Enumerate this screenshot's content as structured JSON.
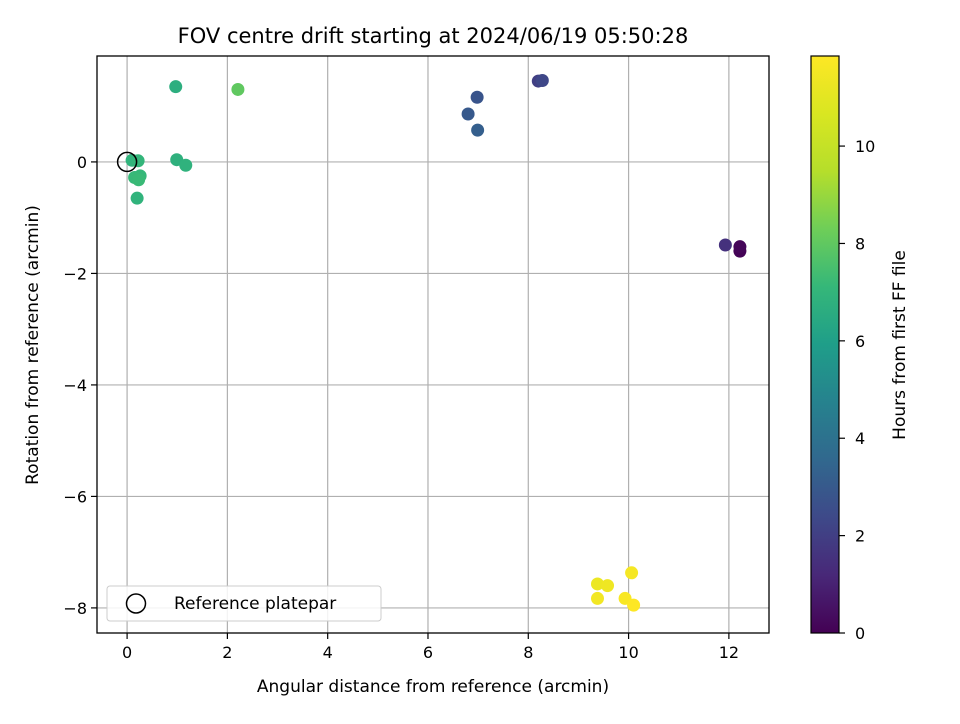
{
  "chart_data": {
    "type": "scatter",
    "title": "FOV centre drift starting at 2024/06/19 05:50:28",
    "xlabel": "Angular distance from reference (arcmin)",
    "ylabel": "Rotation from reference (arcmin)",
    "xlim": [
      -0.6,
      12.8
    ],
    "ylim": [
      -8.45,
      1.9
    ],
    "xticks": [
      0,
      2,
      4,
      6,
      8,
      10,
      12
    ],
    "yticks": [
      0,
      -2,
      -4,
      -6,
      -8
    ],
    "xtick_labels": [
      "0",
      "2",
      "4",
      "6",
      "8",
      "10",
      "12"
    ],
    "ytick_labels": [
      "0",
      "−2",
      "−4",
      "−6",
      "−8"
    ],
    "grid": true,
    "colormap": "viridis",
    "colorbar": {
      "label": "Hours from first FF file",
      "range": [
        0,
        11.85
      ],
      "ticks": [
        0,
        2,
        4,
        6,
        8,
        10
      ],
      "tick_labels": [
        "0",
        "2",
        "4",
        "6",
        "8",
        "10"
      ]
    },
    "legend": {
      "entries": [
        "Reference platepar"
      ],
      "placement": "lower-left"
    },
    "reference_point": {
      "x": 0,
      "y": 0
    },
    "points": [
      {
        "x": 12.22,
        "y": -1.6,
        "hours": 0.05
      },
      {
        "x": 12.22,
        "y": -1.52,
        "hours": 0.15
      },
      {
        "x": 11.93,
        "y": -1.49,
        "hours": 1.5
      },
      {
        "x": 8.2,
        "y": 1.45,
        "hours": 2.0
      },
      {
        "x": 8.28,
        "y": 1.46,
        "hours": 2.3
      },
      {
        "x": 6.98,
        "y": 1.16,
        "hours": 2.8
      },
      {
        "x": 6.8,
        "y": 0.86,
        "hours": 3.0
      },
      {
        "x": 6.99,
        "y": 0.57,
        "hours": 3.2
      },
      {
        "x": 0.97,
        "y": 1.35,
        "hours": 6.7
      },
      {
        "x": 0.99,
        "y": 0.04,
        "hours": 6.8
      },
      {
        "x": 1.17,
        "y": -0.06,
        "hours": 6.85
      },
      {
        "x": 0.1,
        "y": 0.03,
        "hours": 6.9
      },
      {
        "x": 0.22,
        "y": 0.02,
        "hours": 7.0
      },
      {
        "x": 0.26,
        "y": -0.25,
        "hours": 7.1
      },
      {
        "x": 0.15,
        "y": -0.28,
        "hours": 7.15
      },
      {
        "x": 0.23,
        "y": -0.32,
        "hours": 7.2
      },
      {
        "x": 0.2,
        "y": -0.65,
        "hours": 6.9
      },
      {
        "x": 2.21,
        "y": 1.3,
        "hours": 8.0
      },
      {
        "x": 9.38,
        "y": -7.57,
        "hours": 11.3
      },
      {
        "x": 9.58,
        "y": -7.6,
        "hours": 11.4
      },
      {
        "x": 9.38,
        "y": -7.83,
        "hours": 11.5
      },
      {
        "x": 10.06,
        "y": -7.37,
        "hours": 11.6
      },
      {
        "x": 9.93,
        "y": -7.83,
        "hours": 11.7
      },
      {
        "x": 10.1,
        "y": -7.95,
        "hours": 11.85
      }
    ]
  }
}
